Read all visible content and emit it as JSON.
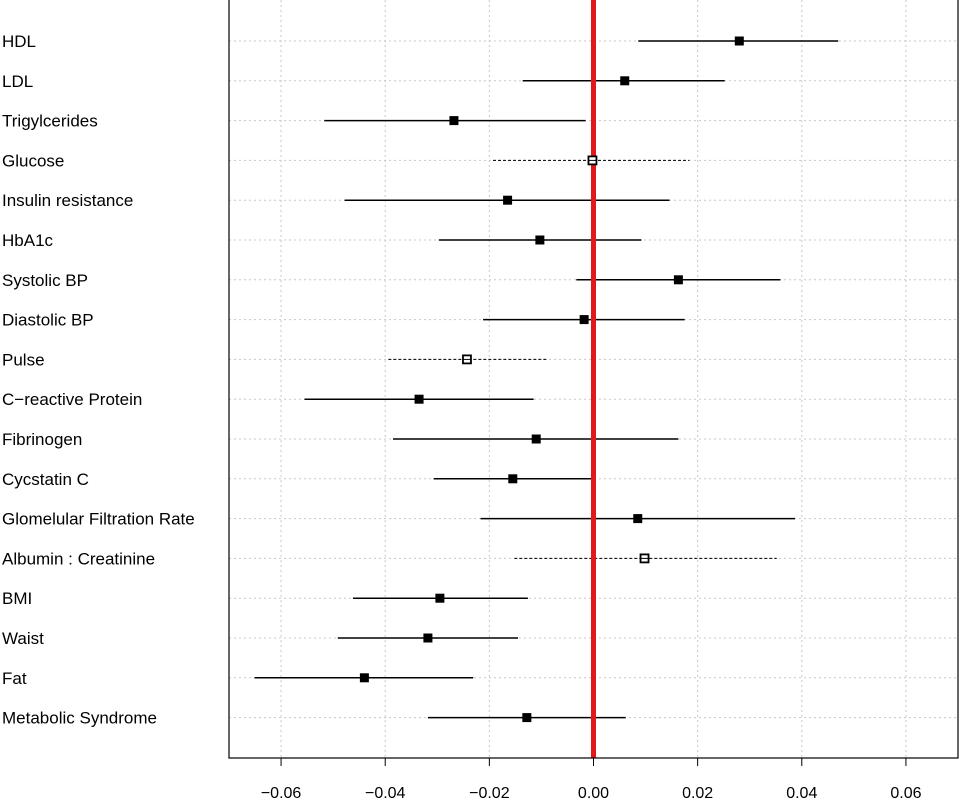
{
  "chart_data": {
    "type": "forest",
    "title": "",
    "xlabel": "",
    "ylabel": "",
    "xlim": [
      -0.07,
      0.07
    ],
    "x_ticks": [
      "-0.06",
      "-0.04",
      "-0.02",
      "0.00",
      "0.02",
      "0.04",
      "0.06"
    ],
    "x_tick_values": [
      -0.06,
      -0.04,
      -0.02,
      0.0,
      0.02,
      0.04,
      0.06
    ],
    "reference_line": {
      "x": 0.0,
      "color": "#e0191b"
    },
    "grid": true,
    "rows": [
      {
        "label": "HDL",
        "estimate": 0.028,
        "lower": 0.0086,
        "upper": 0.047,
        "style": "solid"
      },
      {
        "label": "LDL",
        "estimate": 0.006,
        "lower": -0.0136,
        "upper": 0.0252,
        "style": "solid"
      },
      {
        "label": "Trigylcerides",
        "estimate": -0.0268,
        "lower": -0.0517,
        "upper": -0.0015,
        "style": "solid"
      },
      {
        "label": "Glucose",
        "estimate": -0.0002,
        "lower": -0.0193,
        "upper": 0.0184,
        "style": "dashed"
      },
      {
        "label": "Insulin resistance",
        "estimate": -0.0165,
        "lower": -0.0478,
        "upper": 0.0146,
        "style": "solid"
      },
      {
        "label": "HbA1c",
        "estimate": -0.0103,
        "lower": -0.0297,
        "upper": 0.0092,
        "style": "solid"
      },
      {
        "label": "Systolic BP",
        "estimate": 0.0163,
        "lower": -0.0033,
        "upper": 0.0359,
        "style": "solid"
      },
      {
        "label": "Diastolic BP",
        "estimate": -0.0018,
        "lower": -0.0212,
        "upper": 0.0175,
        "style": "solid"
      },
      {
        "label": "Pulse",
        "estimate": -0.0243,
        "lower": -0.0394,
        "upper": -0.0087,
        "style": "dashed"
      },
      {
        "label": "C−reactive Protein",
        "estimate": -0.0335,
        "lower": -0.0555,
        "upper": -0.0115,
        "style": "solid"
      },
      {
        "label": "Fibrinogen",
        "estimate": -0.011,
        "lower": -0.0385,
        "upper": 0.0163,
        "style": "solid"
      },
      {
        "label": "Cycstatin C",
        "estimate": -0.0155,
        "lower": -0.0307,
        "upper": -0.0002,
        "style": "solid"
      },
      {
        "label": "Glomelular Filtration Rate",
        "estimate": 0.0085,
        "lower": -0.0217,
        "upper": 0.0387,
        "style": "solid"
      },
      {
        "label": "Albumin : Creatinine",
        "estimate": 0.0098,
        "lower": -0.0152,
        "upper": 0.0352,
        "style": "dashed"
      },
      {
        "label": "BMI",
        "estimate": -0.0295,
        "lower": -0.0462,
        "upper": -0.0126,
        "style": "solid"
      },
      {
        "label": "Waist",
        "estimate": -0.0318,
        "lower": -0.0491,
        "upper": -0.0145,
        "style": "solid"
      },
      {
        "label": "Fat",
        "estimate": -0.044,
        "lower": -0.0651,
        "upper": -0.0231,
        "style": "solid"
      },
      {
        "label": "Metabolic Syndrome",
        "estimate": -0.0128,
        "lower": -0.0318,
        "upper": 0.0062,
        "style": "solid"
      }
    ]
  }
}
